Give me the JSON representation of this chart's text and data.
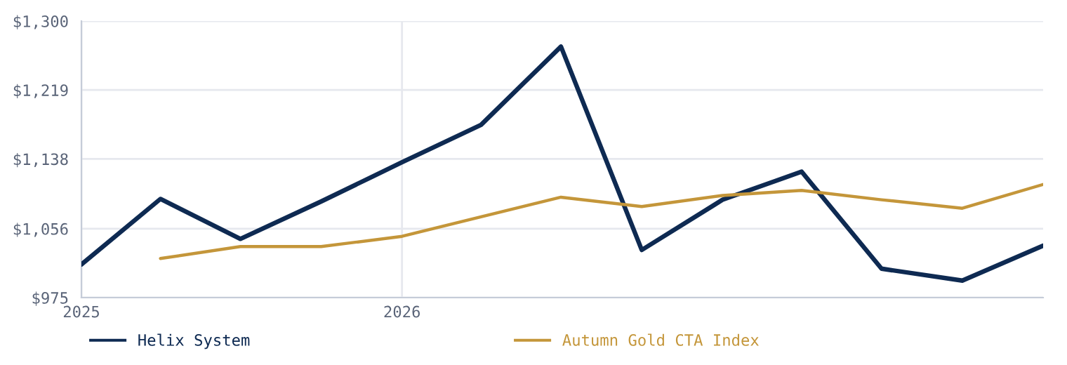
{
  "chart_data": {
    "type": "line",
    "x": [
      "2025-01",
      "2025-04",
      "2025-07",
      "2025-10",
      "2026-01",
      "2026-04",
      "2026-07",
      "2026-10",
      "2027-01",
      "2027-04",
      "2027-07",
      "2027-10",
      "2028-01"
    ],
    "series": [
      {
        "name": "Helix System",
        "color": "#0e2a52",
        "values": [
          1014,
          1091,
          1044,
          1088,
          1134,
          1178,
          1270,
          1031,
          1090,
          1123,
          1009,
          995,
          1036
        ]
      },
      {
        "name": "Autumn Gold CTA Index",
        "color": "#c4963a",
        "values": [
          null,
          1021,
          1035,
          1035,
          1047,
          1070,
          1093,
          1082,
          1095,
          1101,
          1090,
          1080,
          1108
        ]
      }
    ],
    "xlim": [
      "2025-01",
      "2028-01"
    ],
    "xticks": [
      {
        "value": "2025-01",
        "label": "2025"
      },
      {
        "value": "2026-01",
        "label": "2026"
      }
    ],
    "ylim": [
      975,
      1300
    ],
    "yticks": [
      {
        "value": 975,
        "label": "$975"
      },
      {
        "value": 1056,
        "label": "$1,056"
      },
      {
        "value": 1138,
        "label": "$1,138"
      },
      {
        "value": 1219,
        "label": "$1,219"
      },
      {
        "value": 1300,
        "label": "$1,300"
      }
    ],
    "grid": true,
    "legend": "bottom",
    "marker": "none",
    "line_style": "solid"
  }
}
